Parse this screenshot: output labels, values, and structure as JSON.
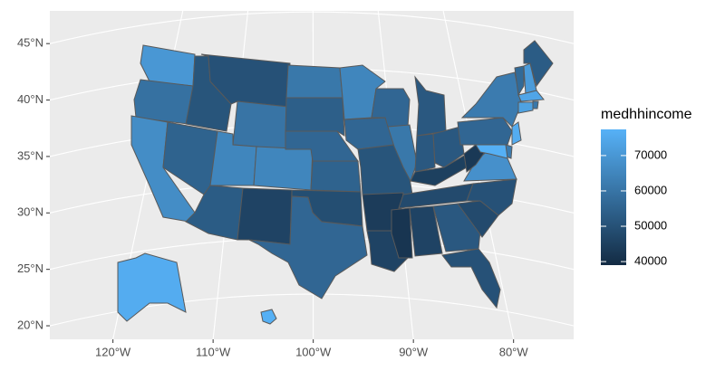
{
  "chart_data": {
    "type": "choropleth",
    "legend_title": "medhhincome",
    "xlim": [
      -126.3,
      -74
    ],
    "ylim": [
      18.8,
      47.9
    ],
    "xticks": [
      {
        "value": -120,
        "label": "120°W"
      },
      {
        "value": -110,
        "label": "110°W"
      },
      {
        "value": -100,
        "label": "100°W"
      },
      {
        "value": -90,
        "label": "90°W"
      },
      {
        "value": -80,
        "label": "80°W"
      }
    ],
    "yticks": [
      {
        "value": 20,
        "label": "20°N"
      },
      {
        "value": 25,
        "label": "25°N"
      },
      {
        "value": 30,
        "label": "30°N"
      },
      {
        "value": 35,
        "label": "35°N"
      },
      {
        "value": 40,
        "label": "40°N"
      },
      {
        "value": 45,
        "label": "45°N"
      }
    ],
    "color_lim": [
      39000,
      77400
    ],
    "color_ticks": [
      40000,
      50000,
      60000,
      70000
    ],
    "colors": [
      "#132B43",
      "#56B1F7"
    ],
    "grid": true,
    "values": [
      70000,
      59000,
      67000,
      55000,
      51000,
      50000,
      60000,
      65000,
      65000,
      53000,
      46000,
      61000,
      54000,
      56000,
      55000,
      49000,
      56000,
      65000,
      56000,
      51000,
      44000,
      46000,
      56000,
      61000,
      52000,
      52000,
      52000,
      45000,
      48000,
      42000,
      46000,
      52000,
      50000,
      48000,
      50000,
      68000,
      43000,
      56000,
      62000,
      57000,
      71000,
      53000,
      74000,
      61000,
      73000,
      76000,
      62000,
      77000,
      76000,
      77000
    ]
  }
}
